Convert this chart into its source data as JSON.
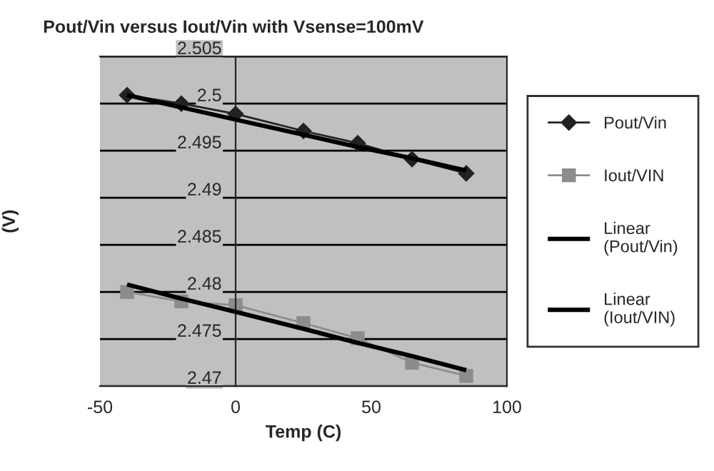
{
  "chart_data": {
    "type": "line",
    "title": "Pout/Vin versus Iout/Vin with Vsense=100mV",
    "xlabel": "Temp (C)",
    "ylabel": "(V)",
    "x": [
      -40,
      -20,
      0,
      25,
      45,
      65,
      85
    ],
    "series": [
      {
        "name": "Pout/Vin",
        "color": "#222222",
        "marker": "diamond",
        "values": [
          2.5009,
          2.5,
          2.4989,
          2.4971,
          2.4958,
          2.4941,
          2.4926
        ]
      },
      {
        "name": "Iout/VIN",
        "color": "#8c8c8c",
        "marker": "square",
        "values": [
          2.48,
          2.479,
          2.4786,
          2.4767,
          2.4751,
          2.4725,
          2.4711
        ]
      },
      {
        "name": "Linear\n(Pout/Vin)",
        "color": "#000000",
        "marker": "none",
        "values": [
          2.5009,
          2.4996,
          2.4983,
          2.4967,
          2.4954,
          2.4942,
          2.4929
        ]
      },
      {
        "name": "Linear\n(Iout/VIN)",
        "color": "#000000",
        "marker": "none",
        "values": [
          2.4808,
          2.4793,
          2.4779,
          2.4761,
          2.4746,
          2.4732,
          2.4717
        ]
      }
    ],
    "xlim": [
      -50,
      100
    ],
    "xticks": [
      -50,
      0,
      50,
      100
    ],
    "ylim": [
      2.47,
      2.505
    ],
    "yticks": [
      2.47,
      2.475,
      2.48,
      2.485,
      2.49,
      2.495,
      2.5,
      2.505
    ],
    "grid": "y",
    "legend": "right"
  }
}
